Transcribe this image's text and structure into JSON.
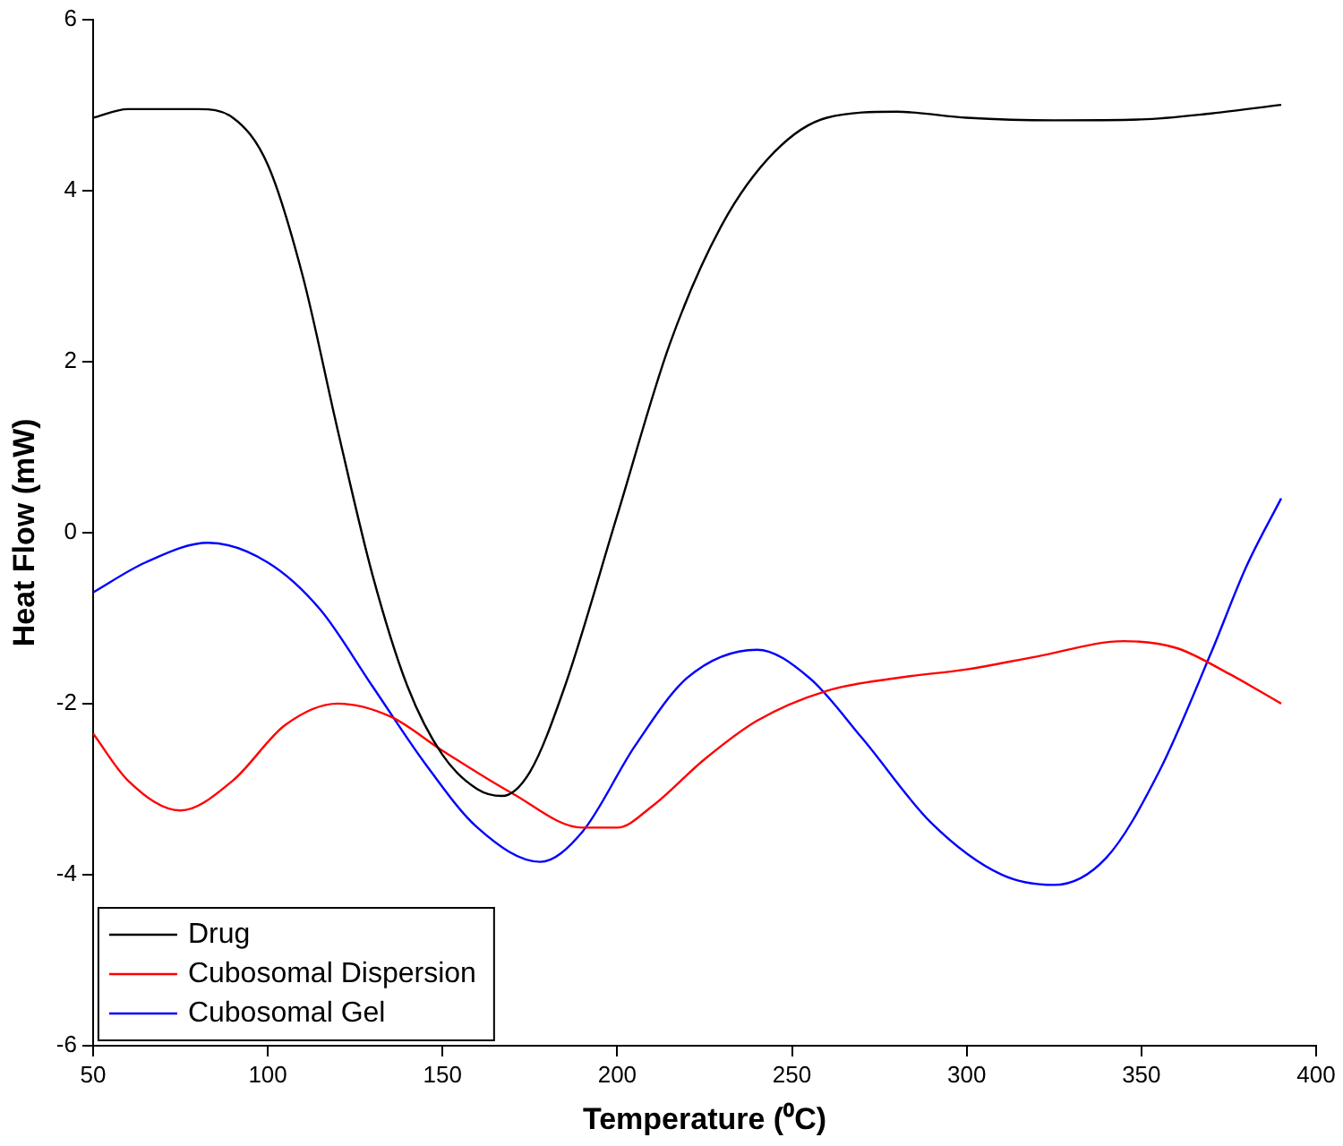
{
  "chart_data": {
    "type": "line",
    "xlabel": "Temperature (⁰C)",
    "ylabel": "Heat Flow (mW)",
    "xlim": [
      50,
      400
    ],
    "xticks": [
      50,
      100,
      150,
      200,
      250,
      300,
      350,
      400
    ],
    "ylim": [
      -6,
      6
    ],
    "yticks": [
      -6,
      -4,
      -2,
      0,
      2,
      4,
      6
    ],
    "grid": false,
    "legend": "bottom left",
    "line_style": "solid",
    "series": [
      {
        "name": "Drug",
        "color": "#000000",
        "x": [
          50,
          60,
          80,
          90,
          100,
          110,
          120,
          130,
          140,
          150,
          160,
          167,
          175,
          185,
          200,
          215,
          230,
          245,
          260,
          280,
          300,
          325,
          350,
          370,
          390
        ],
        "values": [
          4.85,
          4.95,
          4.95,
          4.85,
          4.3,
          3.0,
          1.2,
          -0.5,
          -1.8,
          -2.6,
          -3.0,
          -3.08,
          -2.8,
          -1.8,
          0.2,
          2.2,
          3.6,
          4.45,
          4.85,
          4.92,
          4.85,
          4.82,
          4.83,
          4.9,
          5.0
        ]
      },
      {
        "name": "Cubosomal Dispersion",
        "color": "#ff0000",
        "x": [
          50,
          60,
          75,
          90,
          105,
          120,
          135,
          150,
          170,
          190,
          200,
          210,
          225,
          240,
          260,
          280,
          300,
          320,
          345,
          360,
          375,
          390
        ],
        "values": [
          -2.35,
          -2.9,
          -3.25,
          -2.9,
          -2.25,
          -2.0,
          -2.15,
          -2.55,
          -3.05,
          -3.45,
          -3.45,
          -3.2,
          -2.65,
          -2.2,
          -1.85,
          -1.7,
          -1.6,
          -1.45,
          -1.27,
          -1.35,
          -1.65,
          -2.0
        ]
      },
      {
        "name": "Cubosomal Gel",
        "color": "#0000ff",
        "x": [
          50,
          65,
          83,
          100,
          115,
          130,
          145,
          160,
          178,
          190,
          205,
          220,
          240,
          255,
          270,
          290,
          310,
          325,
          340,
          355,
          370,
          380,
          390
        ],
        "values": [
          -0.7,
          -0.35,
          -0.12,
          -0.35,
          -0.9,
          -1.8,
          -2.7,
          -3.45,
          -3.85,
          -3.5,
          -2.5,
          -1.7,
          -1.37,
          -1.7,
          -2.4,
          -3.4,
          -4.0,
          -4.12,
          -3.8,
          -2.8,
          -1.4,
          -0.4,
          0.4
        ]
      }
    ]
  }
}
